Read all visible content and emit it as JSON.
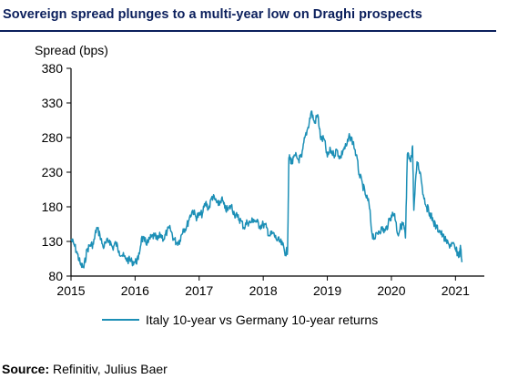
{
  "title": "Sovereign spread plunges to a multi-year low on Draghi prospects",
  "source": {
    "label": "Source:",
    "text": " Refinitiv, Julius Baer"
  },
  "colors": {
    "title": "#0b1f5c",
    "series": "#1c8fb6",
    "axis": "#000000"
  },
  "chart_data": {
    "type": "line",
    "ylabel": "Spread (bps)",
    "xlabel": "",
    "ylim": [
      80,
      380
    ],
    "xlim": [
      2015,
      2021.45
    ],
    "yticks": [
      80,
      130,
      180,
      230,
      280,
      330,
      380
    ],
    "xticks": [
      2015,
      2016,
      2017,
      2018,
      2019,
      2020,
      2021
    ],
    "ytick_labels": [
      "80",
      "130",
      "180",
      "230",
      "280",
      "330",
      "380"
    ],
    "xtick_labels": [
      "2015",
      "2016",
      "2017",
      "2018",
      "2019",
      "2020",
      "2021"
    ],
    "grid": false,
    "legend_position": "bottom",
    "series": [
      {
        "name": "Italy 10-year vs Germany 10-year returns",
        "color": "#1c8fb6",
        "x": [
          2015.0,
          2015.05,
          2015.1,
          2015.15,
          2015.2,
          2015.25,
          2015.3,
          2015.35,
          2015.4,
          2015.45,
          2015.5,
          2015.55,
          2015.6,
          2015.65,
          2015.7,
          2015.75,
          2015.8,
          2015.85,
          2015.9,
          2015.95,
          2016.0,
          2016.05,
          2016.1,
          2016.15,
          2016.2,
          2016.25,
          2016.3,
          2016.35,
          2016.4,
          2016.45,
          2016.5,
          2016.55,
          2016.6,
          2016.65,
          2016.7,
          2016.75,
          2016.8,
          2016.85,
          2016.9,
          2016.95,
          2017.0,
          2017.05,
          2017.1,
          2017.15,
          2017.2,
          2017.25,
          2017.3,
          2017.35,
          2017.4,
          2017.45,
          2017.5,
          2017.55,
          2017.6,
          2017.65,
          2017.7,
          2017.75,
          2017.8,
          2017.85,
          2017.9,
          2017.95,
          2018.0,
          2018.05,
          2018.1,
          2018.15,
          2018.2,
          2018.25,
          2018.3,
          2018.35,
          2018.38,
          2018.4,
          2018.42,
          2018.45,
          2018.5,
          2018.55,
          2018.6,
          2018.65,
          2018.7,
          2018.75,
          2018.8,
          2018.85,
          2018.9,
          2018.95,
          2019.0,
          2019.05,
          2019.1,
          2019.15,
          2019.2,
          2019.25,
          2019.3,
          2019.35,
          2019.4,
          2019.45,
          2019.5,
          2019.55,
          2019.6,
          2019.65,
          2019.7,
          2019.75,
          2019.8,
          2019.85,
          2019.9,
          2019.95,
          2020.0,
          2020.05,
          2020.1,
          2020.15,
          2020.18,
          2020.2,
          2020.22,
          2020.25,
          2020.3,
          2020.33,
          2020.35,
          2020.4,
          2020.45,
          2020.5,
          2020.55,
          2020.6,
          2020.65,
          2020.7,
          2020.75,
          2020.8,
          2020.85,
          2020.9,
          2020.95,
          2021.0,
          2021.03,
          2021.06,
          2021.08,
          2021.1
        ],
        "y": [
          133,
          125,
          112,
          96,
          92,
          118,
          125,
          126,
          150,
          140,
          122,
          128,
          132,
          120,
          128,
          116,
          110,
          105,
          103,
          101,
          100,
          104,
          135,
          130,
          128,
          136,
          138,
          132,
          140,
          133,
          145,
          148,
          134,
          128,
          132,
          148,
          150,
          165,
          175,
          165,
          168,
          170,
          186,
          177,
          195,
          190,
          182,
          192,
          178,
          175,
          182,
          170,
          165,
          160,
          150,
          158,
          157,
          162,
          158,
          152,
          155,
          150,
          138,
          142,
          134,
          130,
          125,
          113,
          118,
          250,
          250,
          243,
          254,
          248,
          252,
          280,
          295,
          318,
          301,
          313,
          277,
          278,
          252,
          262,
          255,
          262,
          250,
          263,
          268,
          282,
          274,
          255,
          226,
          212,
          196,
          185,
          140,
          135,
          145,
          148,
          145,
          155,
          168,
          170,
          140,
          152,
          155,
          148,
          135,
          256,
          245,
          268,
          175,
          245,
          230,
          197,
          180,
          171,
          160,
          150,
          146,
          138,
          130,
          125,
          127,
          118,
          114,
          110,
          121,
          100
        ]
      }
    ]
  }
}
